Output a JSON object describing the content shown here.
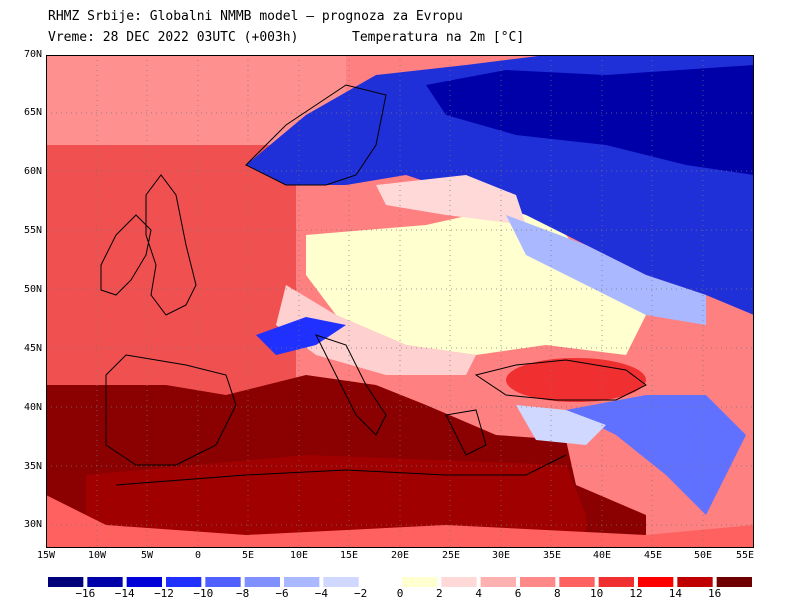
{
  "header": {
    "line1": "RHMZ Srbije: Globalni NMMB model — prognoza za Evropu",
    "line2": "Vreme: 28 DEC 2022 03UTC (+003h)",
    "line3": "Temperatura na 2m [°C]"
  },
  "axes": {
    "lat": [
      "70N",
      "65N",
      "60N",
      "55N",
      "50N",
      "45N",
      "40N",
      "35N",
      "30N"
    ],
    "lon": [
      "15W",
      "10W",
      "5W",
      "0",
      "5E",
      "10E",
      "15E",
      "20E",
      "25E",
      "30E",
      "35E",
      "40E",
      "45E",
      "50E",
      "55E"
    ]
  },
  "colorbar": {
    "colors": [
      "#00007a",
      "#0000a8",
      "#0000d8",
      "#2030ff",
      "#5060ff",
      "#8090ff",
      "#aab8ff",
      "#d0d8ff",
      "#ffffff",
      "#ffffd0",
      "#ffd8d8",
      "#ffb0b0",
      "#ff8888",
      "#ff6060",
      "#f03030",
      "#ff0000",
      "#c00000",
      "#700000"
    ],
    "labels": [
      "−16",
      "−14",
      "−12",
      "−10",
      "−8",
      "−6",
      "−4",
      "−2",
      "0",
      "2",
      "4",
      "6",
      "8",
      "10",
      "12",
      "14",
      "16"
    ]
  }
}
